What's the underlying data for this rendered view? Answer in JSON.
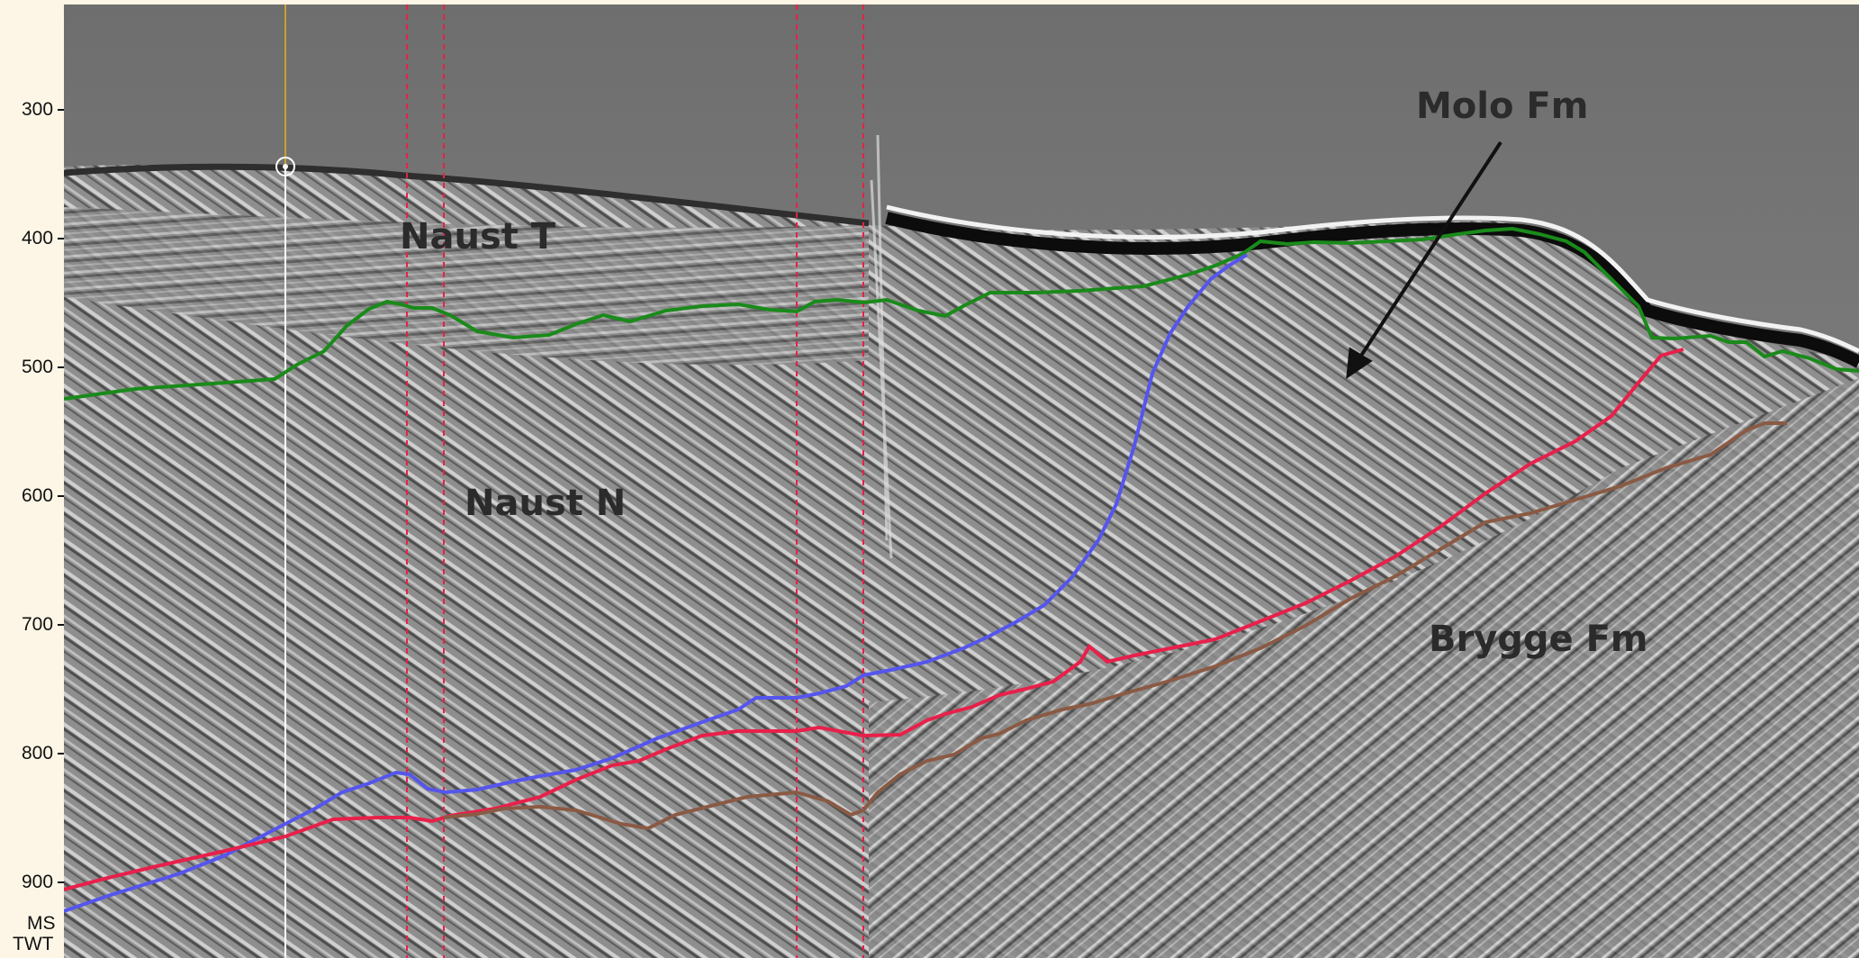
{
  "axis": {
    "ticks": [
      "300",
      "400",
      "500",
      "600",
      "700",
      "800",
      "900"
    ],
    "unit_top": "MS",
    "unit_bottom": "TWT"
  },
  "labels": {
    "naust_t": "Naust T",
    "naust_n": "Naust N",
    "molo_fm": "Molo Fm",
    "brygge_fm": "Brygge Fm"
  },
  "colors": {
    "background_seismic": "#8a8a8a",
    "green_horizon": "#1a8a1a",
    "blue_horizon": "#5555ee",
    "red_horizon": "#e8204a",
    "brown_horizon": "#8a5a44",
    "fault_line": "#e8204a",
    "well_line": "#ffffff",
    "well_top": "#c8a030"
  }
}
